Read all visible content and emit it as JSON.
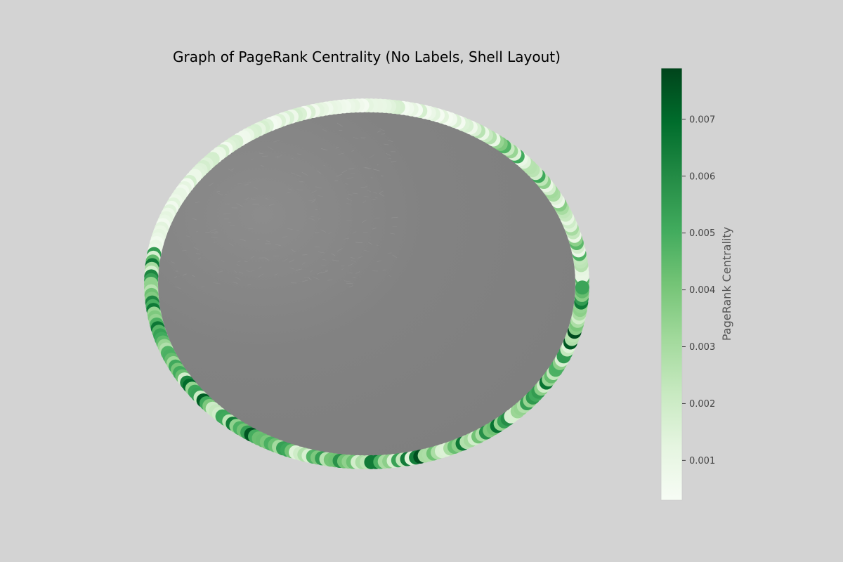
{
  "chart_data": {
    "type": "scatter",
    "title": "Graph of PageRank Centrality (No Labels, Shell Layout)",
    "layout": "shell",
    "node_labels": false,
    "colormap": "Greens",
    "edge_color": "#808080",
    "background": "#d3d3d3",
    "colorbar": {
      "label": "PageRank Centrality",
      "range": [
        0.0003,
        0.0079
      ],
      "ticks": [
        0.001,
        0.002,
        0.003,
        0.004,
        0.005,
        0.006,
        0.007
      ],
      "tick_labels": [
        "0.001",
        "0.002",
        "0.003",
        "0.004",
        "0.005",
        "0.006",
        "0.007"
      ],
      "placement": "right"
    },
    "node_count_estimate": 300,
    "node_centrality_profile": [
      {
        "from_angle": 0,
        "to_angle": 60,
        "level": "mixed-light"
      },
      {
        "from_angle": 60,
        "to_angle": 170,
        "level": "very-light"
      },
      {
        "from_angle": 170,
        "to_angle": 360,
        "level": "mixed-medium-dark"
      }
    ]
  }
}
